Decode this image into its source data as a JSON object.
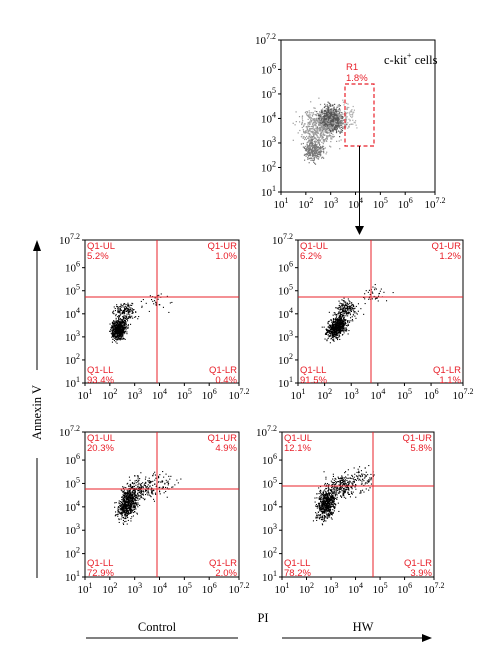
{
  "colors": {
    "accent": "#e8202a",
    "dots": "#000000"
  },
  "labels": {
    "annexin_axis": "Annexin V",
    "pi_axis": "PI",
    "control": "Control",
    "hw": "HW",
    "ckit_main": "c-kit",
    "ckit_sup": "+",
    "ckit_tail": " cells"
  },
  "tick_labels": {
    "decades": [
      "10",
      "10",
      "10",
      "10",
      "10",
      "10",
      "10"
    ],
    "exponents": [
      "1",
      "2",
      "3",
      "4",
      "5",
      "6",
      "7.2"
    ]
  },
  "chart_data": [
    {
      "id": "gate",
      "type": "scatter",
      "xlabel": "",
      "ylabel": "",
      "xscale": "log",
      "yscale": "log",
      "xlim": [
        10,
        15848931.9
      ],
      "ylim": [
        10,
        15848931.9
      ],
      "gate": {
        "name": "R1",
        "percent": "1.8%",
        "xrange": [
          3000,
          20000
        ],
        "yrange": [
          600,
          100000
        ]
      },
      "annotation": "c-kit+ cells",
      "points_description": "dense gray cloud centered near (1000, 10000) with lower tail near (300, 1000)"
    },
    {
      "id": "control-top",
      "type": "scatter",
      "xscale": "log",
      "yscale": "log",
      "xlim": [
        10,
        15848931.9
      ],
      "ylim": [
        10,
        15848931.9
      ],
      "quad_gate": {
        "x": 10000,
        "y": 50000
      },
      "quadrants": {
        "UL": "5.2%",
        "UR": "1.0%",
        "LL": "93.4%",
        "LR": "0.4%"
      },
      "labels": {
        "UL": "Q1-UL",
        "UR": "Q1-UR",
        "LL": "Q1-LL",
        "LR": "Q1-LR"
      }
    },
    {
      "id": "hw-top",
      "type": "scatter",
      "xscale": "log",
      "yscale": "log",
      "xlim": [
        10,
        15848931.9
      ],
      "ylim": [
        10,
        15848931.9
      ],
      "quad_gate": {
        "x": 10000,
        "y": 50000
      },
      "quadrants": {
        "UL": "6.2%",
        "UR": "1.2%",
        "LL": "91.5%",
        "LR": "1.1%"
      },
      "labels": {
        "UL": "Q1-UL",
        "UR": "Q1-UR",
        "LL": "Q1-LL",
        "LR": "Q1-LR"
      }
    },
    {
      "id": "control-bottom",
      "type": "scatter",
      "xscale": "log",
      "yscale": "log",
      "xlim": [
        10,
        15848931.9
      ],
      "ylim": [
        10,
        15848931.9
      ],
      "quad_gate": {
        "x": 10000,
        "y": 50000
      },
      "quadrants": {
        "UL": "20.3%",
        "UR": "4.9%",
        "LL": "72.9%",
        "LR": "2.0%"
      },
      "labels": {
        "UL": "Q1-UL",
        "UR": "Q1-UR",
        "LL": "Q1-LL",
        "LR": "Q1-LR"
      }
    },
    {
      "id": "hw-bottom",
      "type": "scatter",
      "xscale": "log",
      "yscale": "log",
      "xlim": [
        10,
        15848931.9
      ],
      "ylim": [
        10,
        15848931.9
      ],
      "quad_gate": {
        "x": 10000,
        "y": 50000
      },
      "quadrants": {
        "UL": "12.1%",
        "UR": "5.8%",
        "LL": "78.2%",
        "LR": "3.9%"
      },
      "labels": {
        "UL": "Q1-UL",
        "UR": "Q1-UR",
        "LL": "Q1-LL",
        "LR": "Q1-LR"
      }
    }
  ]
}
